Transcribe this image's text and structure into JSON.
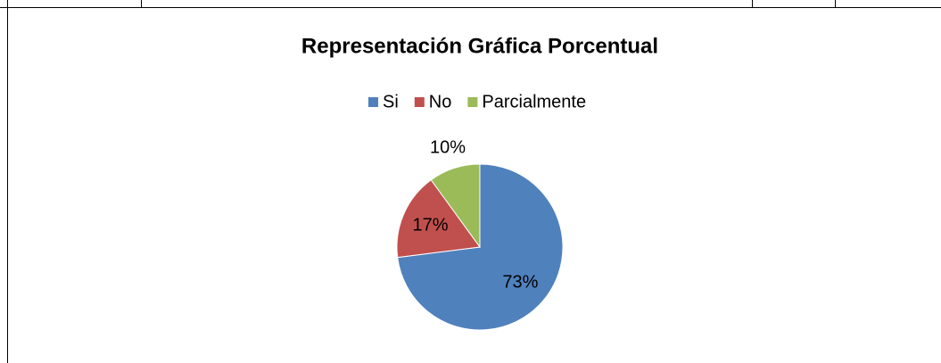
{
  "chart_data": {
    "type": "pie",
    "title": "Representación Gráfica Porcentual",
    "categories": [
      "Si",
      "No",
      "Parcialmente"
    ],
    "values": [
      73,
      17,
      10
    ],
    "value_labels": [
      "73%",
      "17%",
      "10%"
    ],
    "colors": [
      "#4f81bd",
      "#c0504d",
      "#9bbb59"
    ],
    "legend": "top"
  }
}
